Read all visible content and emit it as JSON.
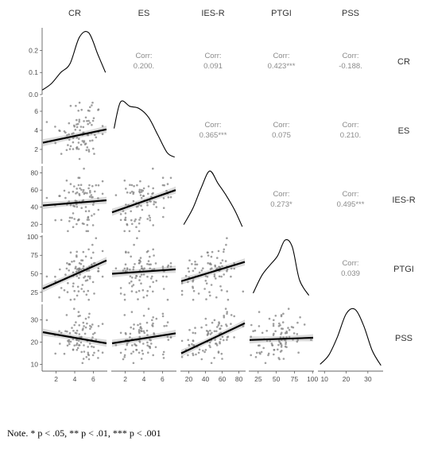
{
  "chart_data": {
    "type": "scatter",
    "variables": [
      {
        "name": "CR",
        "range": [
          0.5,
          7.5
        ],
        "ticks": [
          2,
          4,
          6
        ],
        "density_ticks": [
          0.0,
          0.1,
          0.2
        ]
      },
      {
        "name": "ES",
        "range": [
          0.5,
          7.5
        ],
        "ticks": [
          2,
          4,
          6
        ]
      },
      {
        "name": "IES-R",
        "range": [
          10,
          88
        ],
        "ticks": [
          20,
          40,
          60,
          80
        ]
      },
      {
        "name": "PTGI",
        "range": [
          12,
          102
        ],
        "ticks": [
          25,
          50,
          75,
          100
        ]
      },
      {
        "name": "PSS",
        "range": [
          7,
          37
        ],
        "ticks": [
          10,
          20,
          30
        ]
      }
    ],
    "correlations": [
      {
        "row": "CR",
        "col": "ES",
        "label": "Corr:",
        "value": "0.200."
      },
      {
        "row": "CR",
        "col": "IES-R",
        "label": "Corr:",
        "value": "0.091"
      },
      {
        "row": "CR",
        "col": "PTGI",
        "label": "Corr:",
        "value": "0.423***"
      },
      {
        "row": "CR",
        "col": "PSS",
        "label": "Corr:",
        "value": "-0.188."
      },
      {
        "row": "ES",
        "col": "IES-R",
        "label": "Corr:",
        "value": "0.365***"
      },
      {
        "row": "ES",
        "col": "PTGI",
        "label": "Corr:",
        "value": "0.075"
      },
      {
        "row": "ES",
        "col": "PSS",
        "label": "Corr:",
        "value": "0.210."
      },
      {
        "row": "IES-R",
        "col": "PTGI",
        "label": "Corr:",
        "value": "0.273*"
      },
      {
        "row": "IES-R",
        "col": "PSS",
        "label": "Corr:",
        "value": "0.495***"
      },
      {
        "row": "PTGI",
        "col": "PSS",
        "label": "Corr:",
        "value": "0.039"
      }
    ],
    "fit_lines": [
      {
        "x": "CR",
        "y": "ES",
        "y_at_min": 2.7,
        "y_at_max": 4.1
      },
      {
        "x": "CR",
        "y": "IES-R",
        "y_at_min": 42,
        "y_at_max": 48
      },
      {
        "x": "ES",
        "y": "IES-R",
        "y_at_min": 34,
        "y_at_max": 60
      },
      {
        "x": "CR",
        "y": "PTGI",
        "y_at_min": 30,
        "y_at_max": 68
      },
      {
        "x": "ES",
        "y": "PTGI",
        "y_at_min": 50,
        "y_at_max": 56
      },
      {
        "x": "IES-R",
        "y": "PTGI",
        "y_at_min": 40,
        "y_at_max": 66
      },
      {
        "x": "CR",
        "y": "PSS",
        "y_at_min": 24.5,
        "y_at_max": 19.5
      },
      {
        "x": "ES",
        "y": "PSS",
        "y_at_min": 19.5,
        "y_at_max": 24
      },
      {
        "x": "IES-R",
        "y": "PSS",
        "y_at_min": 15,
        "y_at_max": 28.5
      },
      {
        "x": "PTGI",
        "y": "PSS",
        "y_at_min": 21,
        "y_at_max": 22
      }
    ],
    "densities": [
      {
        "var": "CR",
        "x": [
          0.5,
          1.5,
          2.5,
          3.5,
          4.5,
          5.5,
          6.5,
          7.3
        ],
        "y": [
          0.02,
          0.05,
          0.1,
          0.14,
          0.26,
          0.28,
          0.18,
          0.1
        ]
      },
      {
        "var": "ES",
        "x": [
          0.8,
          1.5,
          2.5,
          3.5,
          4.5,
          5.5,
          6.5,
          7.3
        ],
        "y": [
          0.16,
          0.28,
          0.26,
          0.25,
          0.21,
          0.13,
          0.05,
          0.03
        ]
      },
      {
        "var": "IES-R",
        "x": [
          14,
          25,
          35,
          45,
          55,
          65,
          75,
          84
        ],
        "y": [
          0.004,
          0.012,
          0.022,
          0.03,
          0.024,
          0.018,
          0.011,
          0.003
        ]
      },
      {
        "var": "PTGI",
        "x": [
          18,
          30,
          42,
          52,
          62,
          72,
          82,
          95
        ],
        "y": [
          0.004,
          0.012,
          0.017,
          0.021,
          0.028,
          0.025,
          0.01,
          0.003
        ]
      },
      {
        "var": "PSS",
        "x": [
          8,
          12,
          16,
          20,
          24,
          28,
          32,
          36
        ],
        "y": [
          0.006,
          0.014,
          0.03,
          0.05,
          0.054,
          0.04,
          0.018,
          0.005
        ]
      }
    ],
    "n_points": 90
  },
  "note": "Note. * p < .05, ** p < .01, *** p < .001"
}
